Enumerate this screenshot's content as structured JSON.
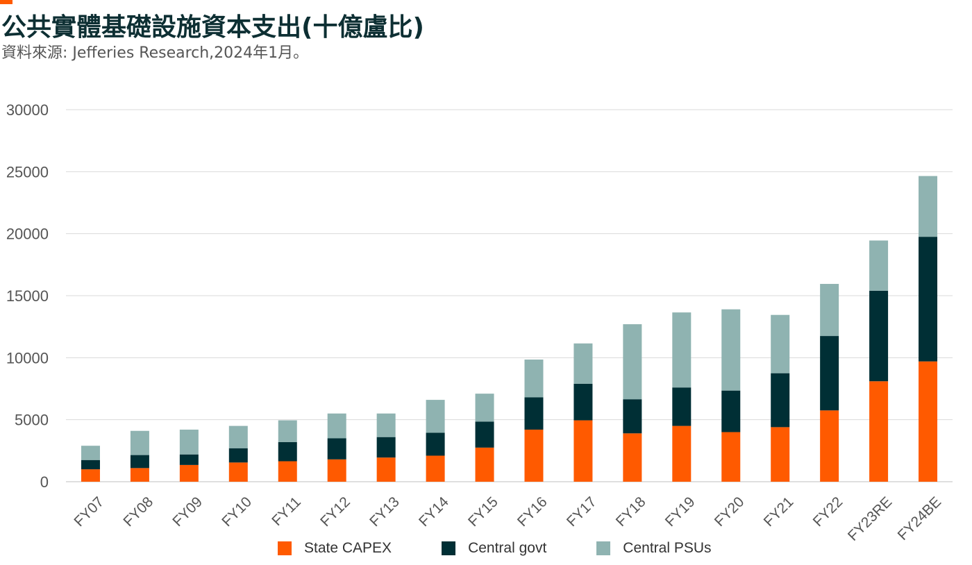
{
  "header": {
    "title": "公共實體基礎設施資本支出(十億盧比)",
    "source": "資料來源: Jefferies Research,2024年1月。"
  },
  "colors": {
    "accent": "#ff5a00",
    "title": "#0d2f33",
    "state_capex": "#ff5a00",
    "central_govt": "#002f35",
    "central_psus": "#8fb3b1",
    "grid": "#d9d9d9"
  },
  "chart_data": {
    "type": "bar",
    "stacked": true,
    "title": "公共實體基礎設施資本支出(十億盧比)",
    "xlabel": "",
    "ylabel": "",
    "ylim": [
      0,
      30000
    ],
    "yticks": [
      0,
      5000,
      10000,
      15000,
      20000,
      25000,
      30000
    ],
    "grid": true,
    "legend_position": "bottom",
    "categories": [
      "FY07",
      "FY08",
      "FY09",
      "FY10",
      "FY11",
      "FY12",
      "FY13",
      "FY14",
      "FY15",
      "FY16",
      "FY17",
      "FY18",
      "FY19",
      "FY20",
      "FY21",
      "FY22",
      "FY23RE",
      "FY24BE"
    ],
    "series": [
      {
        "name": "State CAPEX",
        "color": "#ff5a00",
        "values": [
          1000,
          1100,
          1350,
          1550,
          1650,
          1800,
          1950,
          2100,
          2750,
          4200,
          4950,
          3900,
          4500,
          4000,
          4400,
          5750,
          8100,
          9700
        ]
      },
      {
        "name": "Central govt",
        "color": "#002f35",
        "values": [
          750,
          1050,
          850,
          1150,
          1550,
          1700,
          1650,
          1850,
          2100,
          2600,
          2950,
          2750,
          3100,
          3350,
          4350,
          6000,
          7300,
          10050
        ]
      },
      {
        "name": "Central PSUs",
        "color": "#8fb3b1",
        "values": [
          1150,
          1950,
          2000,
          1800,
          1750,
          2000,
          1900,
          2650,
          2250,
          3050,
          3250,
          6050,
          6050,
          6550,
          4700,
          4200,
          4050,
          4900
        ]
      }
    ]
  }
}
